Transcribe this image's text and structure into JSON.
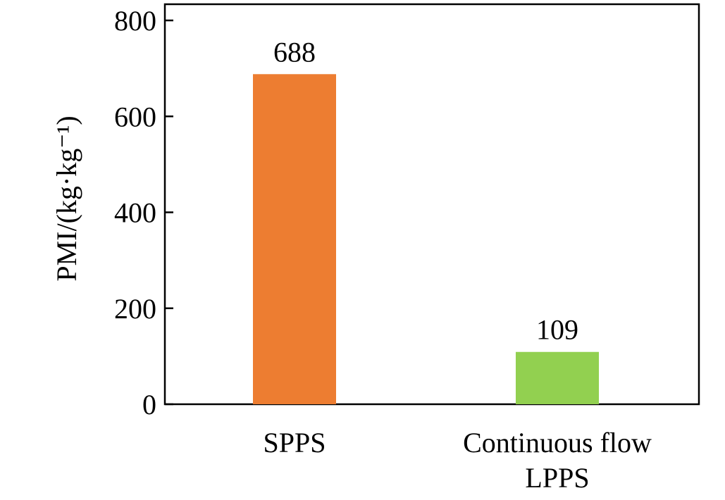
{
  "chart_data": {
    "type": "bar",
    "categories": [
      [
        "SPPS"
      ],
      [
        "Continuous flow",
        "LPPS"
      ]
    ],
    "values": [
      688,
      109
    ],
    "data_labels": [
      "688",
      "109"
    ],
    "bar_colors": [
      "#ED7D31",
      "#92D050"
    ],
    "ylabel": "PMI/(kg·kg⁻¹)",
    "ylim": [
      0,
      800
    ],
    "yticks": [
      0,
      200,
      400,
      600,
      800
    ],
    "grid": false,
    "legend": "none"
  }
}
